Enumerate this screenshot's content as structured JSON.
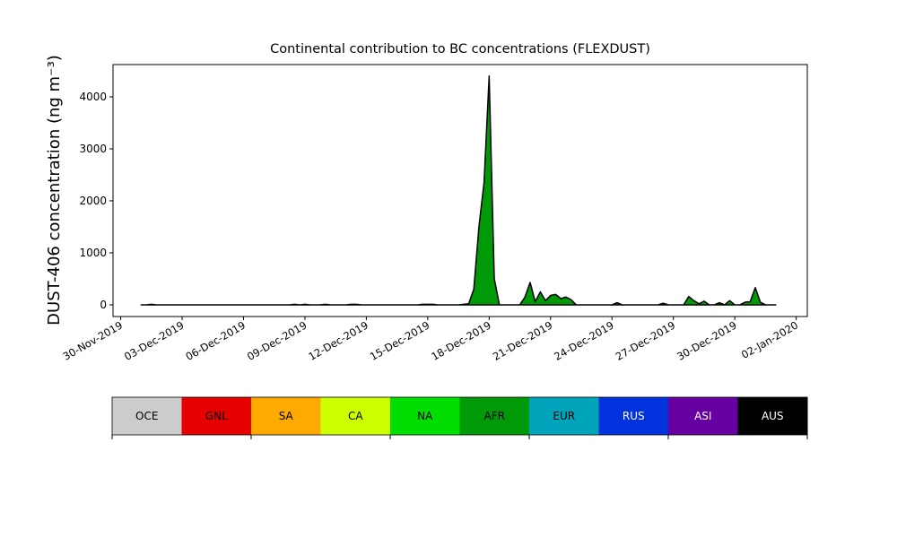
{
  "chart_data": {
    "type": "area",
    "title": "Continental contribution to BC concentrations (FLEXDUST)",
    "y_label": "DUST-406 concentration (ng m⁻³)",
    "x": [
      "2019-12-01T00:00",
      "2019-12-01T06:00",
      "2019-12-01T12:00",
      "2019-12-01T18:00",
      "2019-12-02T00:00",
      "2019-12-02T06:00",
      "2019-12-02T12:00",
      "2019-12-02T18:00",
      "2019-12-03T00:00",
      "2019-12-03T06:00",
      "2019-12-03T12:00",
      "2019-12-03T18:00",
      "2019-12-04T00:00",
      "2019-12-04T06:00",
      "2019-12-04T12:00",
      "2019-12-04T18:00",
      "2019-12-05T00:00",
      "2019-12-05T06:00",
      "2019-12-05T12:00",
      "2019-12-05T18:00",
      "2019-12-06T00:00",
      "2019-12-06T06:00",
      "2019-12-06T12:00",
      "2019-12-06T18:00",
      "2019-12-07T00:00",
      "2019-12-07T06:00",
      "2019-12-07T12:00",
      "2019-12-07T18:00",
      "2019-12-08T00:00",
      "2019-12-08T06:00",
      "2019-12-08T12:00",
      "2019-12-08T18:00",
      "2019-12-09T00:00",
      "2019-12-09T06:00",
      "2019-12-09T12:00",
      "2019-12-09T18:00",
      "2019-12-10T00:00",
      "2019-12-10T06:00",
      "2019-12-10T12:00",
      "2019-12-10T18:00",
      "2019-12-11T00:00",
      "2019-12-11T06:00",
      "2019-12-11T12:00",
      "2019-12-11T18:00",
      "2019-12-12T00:00",
      "2019-12-12T06:00",
      "2019-12-12T12:00",
      "2019-12-12T18:00",
      "2019-12-13T00:00",
      "2019-12-13T06:00",
      "2019-12-13T12:00",
      "2019-12-13T18:00",
      "2019-12-14T00:00",
      "2019-12-14T06:00",
      "2019-12-14T12:00",
      "2019-12-14T18:00",
      "2019-12-15T00:00",
      "2019-12-15T06:00",
      "2019-12-15T12:00",
      "2019-12-15T18:00",
      "2019-12-16T00:00",
      "2019-12-16T06:00",
      "2019-12-16T12:00",
      "2019-12-16T18:00",
      "2019-12-17T00:00",
      "2019-12-17T06:00",
      "2019-12-17T12:00",
      "2019-12-17T18:00",
      "2019-12-18T00:00",
      "2019-12-18T06:00",
      "2019-12-18T12:00",
      "2019-12-18T18:00",
      "2019-12-19T00:00",
      "2019-12-19T06:00",
      "2019-12-19T12:00",
      "2019-12-19T18:00",
      "2019-12-20T00:00",
      "2019-12-20T06:00",
      "2019-12-20T12:00",
      "2019-12-20T18:00",
      "2019-12-21T00:00",
      "2019-12-21T06:00",
      "2019-12-21T12:00",
      "2019-12-21T18:00",
      "2019-12-22T00:00",
      "2019-12-22T06:00",
      "2019-12-22T12:00",
      "2019-12-22T18:00",
      "2019-12-23T00:00",
      "2019-12-23T06:00",
      "2019-12-23T12:00",
      "2019-12-23T18:00",
      "2019-12-24T00:00",
      "2019-12-24T06:00",
      "2019-12-24T12:00",
      "2019-12-24T18:00",
      "2019-12-25T00:00",
      "2019-12-25T06:00",
      "2019-12-25T12:00",
      "2019-12-25T18:00",
      "2019-12-26T00:00",
      "2019-12-26T06:00",
      "2019-12-26T12:00",
      "2019-12-26T18:00",
      "2019-12-27T00:00",
      "2019-12-27T06:00",
      "2019-12-27T12:00",
      "2019-12-27T18:00",
      "2019-12-28T00:00",
      "2019-12-28T06:00",
      "2019-12-28T12:00",
      "2019-12-28T18:00",
      "2019-12-29T00:00",
      "2019-12-29T06:00",
      "2019-12-29T12:00",
      "2019-12-29T18:00",
      "2019-12-30T00:00",
      "2019-12-30T06:00",
      "2019-12-30T12:00",
      "2019-12-30T18:00",
      "2019-12-31T00:00",
      "2019-12-31T06:00",
      "2019-12-31T12:00",
      "2019-12-31T18:00",
      "2020-01-01T00:00"
    ],
    "series": [
      {
        "name": "AFR",
        "color": "#009a09",
        "values": [
          0,
          0,
          10,
          0,
          0,
          0,
          0,
          0,
          0,
          0,
          0,
          0,
          0,
          0,
          0,
          0,
          0,
          0,
          0,
          0,
          0,
          0,
          0,
          0,
          0,
          0,
          0,
          0,
          0,
          0,
          10,
          0,
          10,
          0,
          0,
          0,
          10,
          0,
          0,
          0,
          0,
          10,
          10,
          0,
          0,
          0,
          0,
          0,
          0,
          0,
          0,
          0,
          0,
          0,
          0,
          10,
          10,
          10,
          0,
          0,
          0,
          0,
          0,
          10,
          20,
          300,
          1500,
          2350,
          4400,
          500,
          0,
          0,
          0,
          0,
          0,
          150,
          430,
          60,
          250,
          80,
          180,
          200,
          120,
          150,
          100,
          0,
          0,
          0,
          0,
          0,
          0,
          0,
          0,
          40,
          0,
          0,
          0,
          0,
          0,
          0,
          0,
          0,
          30,
          0,
          0,
          0,
          0,
          160,
          80,
          20,
          70,
          0,
          0,
          40,
          0,
          80,
          0,
          0,
          50,
          60,
          330,
          50,
          0,
          0,
          0
        ]
      }
    ],
    "xlim": [
      "2019-11-29T15:00",
      "2020-01-02T13:00"
    ],
    "xticks": [
      {
        "value": "2019-11-30T00:00",
        "label": "30-Nov-2019"
      },
      {
        "value": "2019-12-03T00:00",
        "label": "03-Dec-2019"
      },
      {
        "value": "2019-12-06T00:00",
        "label": "06-Dec-2019"
      },
      {
        "value": "2019-12-09T00:00",
        "label": "09-Dec-2019"
      },
      {
        "value": "2019-12-12T00:00",
        "label": "12-Dec-2019"
      },
      {
        "value": "2019-12-15T00:00",
        "label": "15-Dec-2019"
      },
      {
        "value": "2019-12-18T00:00",
        "label": "18-Dec-2019"
      },
      {
        "value": "2019-12-21T00:00",
        "label": "21-Dec-2019"
      },
      {
        "value": "2019-12-24T00:00",
        "label": "24-Dec-2019"
      },
      {
        "value": "2019-12-27T00:00",
        "label": "27-Dec-2019"
      },
      {
        "value": "2019-12-30T00:00",
        "label": "30-Dec-2019"
      },
      {
        "value": "2020-01-02T00:00",
        "label": "02-Jan-2020"
      }
    ],
    "ylim": [
      -225,
      4620
    ],
    "yticks": [
      0,
      1000,
      2000,
      3000,
      4000
    ],
    "colorbar": {
      "labels": [
        "OCE",
        "GNL",
        "SA",
        "CA",
        "NA",
        "AFR",
        "EUR",
        "RUS",
        "ASI",
        "AUS"
      ],
      "colors": [
        "#cccccc",
        "#e60000",
        "#ffaa00",
        "#ccff00",
        "#00dd00",
        "#009a09",
        "#00a5bb",
        "#0033dd",
        "#6600a0",
        "#000000"
      ],
      "lim": [
        0,
        10
      ],
      "ticks": [
        0,
        2,
        4,
        6,
        8,
        10
      ]
    }
  }
}
